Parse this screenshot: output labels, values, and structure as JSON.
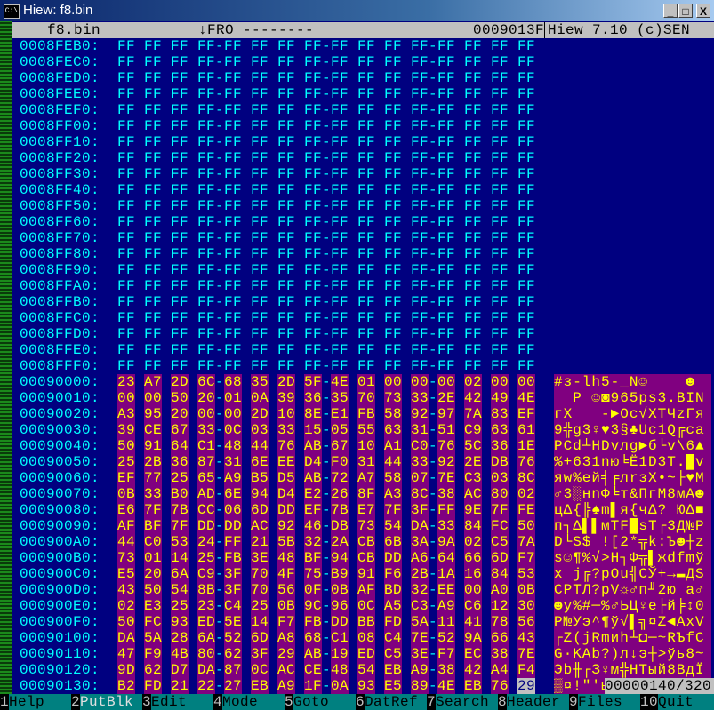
{
  "window": {
    "title": "Hiew: f8.bin",
    "minimize": "_",
    "maximize": "□",
    "close": "X"
  },
  "header": {
    "filename": "f8.bin",
    "mode": "↓FRO --------",
    "offset": "0009013F",
    "version": "Hiew 7.10 (c)SEN"
  },
  "colors": {
    "background": "#000080",
    "address": "#00ffff",
    "highlight_bg": "#800080",
    "highlight_fg": "#ffff00",
    "statusbar": "#c0c0c0",
    "fkeybar": "#008080"
  },
  "rows": [
    {
      "addr": "0008FEB0:",
      "bytes": "FF FF FF FF FF FF FF FF FF FF FF FF FF FF FF FF",
      "text": ""
    },
    {
      "addr": "0008FEC0:",
      "bytes": "FF FF FF FF FF FF FF FF FF FF FF FF FF FF FF FF",
      "text": ""
    },
    {
      "addr": "0008FED0:",
      "bytes": "FF FF FF FF FF FF FF FF FF FF FF FF FF FF FF FF",
      "text": ""
    },
    {
      "addr": "0008FEE0:",
      "bytes": "FF FF FF FF FF FF FF FF FF FF FF FF FF FF FF FF",
      "text": ""
    },
    {
      "addr": "0008FEF0:",
      "bytes": "FF FF FF FF FF FF FF FF FF FF FF FF FF FF FF FF",
      "text": ""
    },
    {
      "addr": "0008FF00:",
      "bytes": "FF FF FF FF FF FF FF FF FF FF FF FF FF FF FF FF",
      "text": ""
    },
    {
      "addr": "0008FF10:",
      "bytes": "FF FF FF FF FF FF FF FF FF FF FF FF FF FF FF FF",
      "text": ""
    },
    {
      "addr": "0008FF20:",
      "bytes": "FF FF FF FF FF FF FF FF FF FF FF FF FF FF FF FF",
      "text": ""
    },
    {
      "addr": "0008FF30:",
      "bytes": "FF FF FF FF FF FF FF FF FF FF FF FF FF FF FF FF",
      "text": ""
    },
    {
      "addr": "0008FF40:",
      "bytes": "FF FF FF FF FF FF FF FF FF FF FF FF FF FF FF FF",
      "text": ""
    },
    {
      "addr": "0008FF50:",
      "bytes": "FF FF FF FF FF FF FF FF FF FF FF FF FF FF FF FF",
      "text": ""
    },
    {
      "addr": "0008FF60:",
      "bytes": "FF FF FF FF FF FF FF FF FF FF FF FF FF FF FF FF",
      "text": ""
    },
    {
      "addr": "0008FF70:",
      "bytes": "FF FF FF FF FF FF FF FF FF FF FF FF FF FF FF FF",
      "text": ""
    },
    {
      "addr": "0008FF80:",
      "bytes": "FF FF FF FF FF FF FF FF FF FF FF FF FF FF FF FF",
      "text": ""
    },
    {
      "addr": "0008FF90:",
      "bytes": "FF FF FF FF FF FF FF FF FF FF FF FF FF FF FF FF",
      "text": ""
    },
    {
      "addr": "0008FFA0:",
      "bytes": "FF FF FF FF FF FF FF FF FF FF FF FF FF FF FF FF",
      "text": ""
    },
    {
      "addr": "0008FFB0:",
      "bytes": "FF FF FF FF FF FF FF FF FF FF FF FF FF FF FF FF",
      "text": ""
    },
    {
      "addr": "0008FFC0:",
      "bytes": "FF FF FF FF FF FF FF FF FF FF FF FF FF FF FF FF",
      "text": ""
    },
    {
      "addr": "0008FFD0:",
      "bytes": "FF FF FF FF FF FF FF FF FF FF FF FF FF FF FF FF",
      "text": ""
    },
    {
      "addr": "0008FFE0:",
      "bytes": "FF FF FF FF FF FF FF FF FF FF FF FF FF FF FF FF",
      "text": ""
    },
    {
      "addr": "0008FFF0:",
      "bytes": "FF FF FF FF FF FF FF FF FF FF FF FF FF FF FF FF",
      "text": ""
    },
    {
      "addr": "00090000:",
      "bytes": "23 A7 2D 6C 68 35 2D 5F 4E 01 00 00 00 02 00 00",
      "text": "#з-lh5-_N☺    ☻ ",
      "hl": true
    },
    {
      "addr": "00090010:",
      "bytes": "00 00 50 20 01 0A 39 36 35 70 73 33 2E 42 49 4E",
      "text": "  P ☺◙965ps3.BIN",
      "hl": true
    },
    {
      "addr": "00090020:",
      "bytes": "A3 95 20 00 00 2D 10 8E E1 FB 58 92 97 7A 83 EF",
      "text": "гХ   -►Oс√XТЧzГя",
      "hl": true
    },
    {
      "addr": "00090030:",
      "bytes": "39 CE 67 33 0C 03 33 15 05 55 63 31 51 C9 63 61",
      "text": "9╬g3♀♥3§♣Uc1Q╔ca",
      "hl": true
    },
    {
      "addr": "00090040:",
      "bytes": "50 91 64 C1 48 44 76 AB 67 10 A1 C0 76 5C 36 1E",
      "text": "PСd┴HDvлg►б└v\\6▲",
      "hl": true
    },
    {
      "addr": "00090050:",
      "bytes": "25 2B 36 87 31 6E EE D4 F0 31 44 33 92 2E DB 76",
      "text": "%+631nю╘Ё1D3Т.█v",
      "hl": true
    },
    {
      "addr": "00090060:",
      "bytes": "EF 77 25 65 A9 B5 D5 AB 72 A7 58 07 7E C3 03 8C",
      "text": "яw%eй╡╒лrзX•~├♥М",
      "hl": true
    },
    {
      "addr": "00090070:",
      "bytes": "0B 33 B0 AD 6E 94 D4 E2 26 8F A3 8C 38 AC 80 02",
      "text": "♂3░нnФ╘т&ПгМ8мА☻",
      "hl": true
    },
    {
      "addr": "00090080:",
      "bytes": "E6 7F 7B CC 06 6D DD EF 7B E7 7F 3F FF 9E 7F FE",
      "text": "цΔ{╠♠m▌я{чΔ? ЮΔ■",
      "hl": true
    },
    {
      "addr": "00090090:",
      "bytes": "AF BF 7F DD DD AC 92 46 DB 73 54 DA 33 84 FC 50",
      "text": "п┐Δ▌▌мТF█sT┌3Д№P",
      "hl": true
    },
    {
      "addr": "000900A0:",
      "bytes": "44 C0 53 24 FF 21 5B 32 2A CB 6B 3A 9A 02 C5 7A",
      "text": "D└S$ ![2*╦k:Ъ☻┼z",
      "hl": true
    },
    {
      "addr": "000900B0:",
      "bytes": "73 01 14 25 FB 3E 48 BF 94 CB DD A6 64 66 6D F7",
      "text": "s☺¶%√>H┐Ф╦▌жdfmў",
      "hl": true
    },
    {
      "addr": "000900C0:",
      "bytes": "E5 20 6A C9 3F 70 4F 75 B9 91 F6 2B 1A 16 84 53",
      "text": "х j╔?pOu╣СЎ+→▬ДS",
      "hl": true
    },
    {
      "addr": "000900D0:",
      "bytes": "43 50 54 8B 3F 70 56 0F 0B AF BD 32 EE 00 A0 0B",
      "text": "CPTЛ?pV☼♂п╜2ю а♂",
      "hl": true
    },
    {
      "addr": "000900E0:",
      "bytes": "02 E3 25 23 C4 25 0B 9C 96 0C A5 C3 A9 C6 12 30",
      "text": "☻у%#─%♂ЬЦ♀е├й╞↕0",
      "hl": true
    },
    {
      "addr": "000900F0:",
      "bytes": "50 FC 93 ED 5E 14 F7 FB DD BB FD 5A 11 41 78 56",
      "text": "P№Уэ^¶ў√▌╗¤Z◄AxV",
      "hl": true
    },
    {
      "addr": "00090100:",
      "bytes": "DA 5A 28 6A 52 6D A8 68 C1 08 C4 7E 52 9A 66 43",
      "text": "┌Z(jRmиh┴◘─~RЪfC",
      "hl": true
    },
    {
      "addr": "00090110:",
      "bytes": "47 F9 4B 80 62 3F 29 AB 19 ED C5 3E F7 EC 38 7E",
      "text": "G∙KАb?)л↓э┼>ўь8~",
      "hl": true
    },
    {
      "addr": "00090120:",
      "bytes": "9D 62 D7 DA 87 0C AC CE 48 54 EB A9 38 42 A4 F4",
      "text": "Эb╫┌З♀м╬HTый8BдЇ",
      "hl": true
    },
    {
      "addr": "00090130:",
      "bytes": "B2 FD 21 22 27 EB A9 1F 0A 93 E5 89 4E EB 76 29",
      "text": "▒¤!\"'ы",
      "hl": true,
      "cursor_byte": 15
    }
  ],
  "status": {
    "position": "00000140/320"
  },
  "fkeys": [
    {
      "n": "1",
      "label": "Help"
    },
    {
      "n": "2",
      "label": "PutBlk",
      "disabled": true
    },
    {
      "n": "3",
      "label": "Edit"
    },
    {
      "n": "4",
      "label": "Mode"
    },
    {
      "n": "5",
      "label": "Goto"
    },
    {
      "n": "6",
      "label": "DatRef"
    },
    {
      "n": "7",
      "label": "Search"
    },
    {
      "n": "8",
      "label": "Header"
    },
    {
      "n": "9",
      "label": "Files"
    },
    {
      "n": "10",
      "label": "Quit"
    }
  ]
}
